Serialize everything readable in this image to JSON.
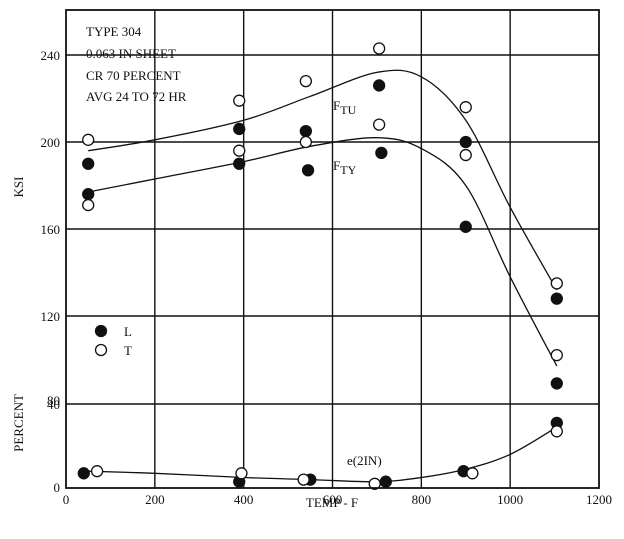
{
  "chart_data": {
    "type": "scatter",
    "grid": true,
    "x_axis": {
      "label": "TEMP - F",
      "ticks": [
        0,
        200,
        400,
        600,
        800,
        1000,
        1200
      ],
      "range": [
        0,
        1200
      ]
    },
    "y_axis_ksi": {
      "label": "KSI",
      "ticks": [
        120,
        160,
        200,
        240
      ],
      "range": [
        80,
        270
      ]
    },
    "y_axis_percent": {
      "label": "PERCENT",
      "ticks": [
        0,
        40
      ],
      "range": [
        0,
        80
      ]
    },
    "annotation_lines": [
      "TYPE 304",
      "0.063 IN SHEET",
      "CR 70 PERCENT",
      "AVG 24 TO 72 HR"
    ],
    "curve_labels": {
      "ftu": {
        "main": "F",
        "sub": "TU"
      },
      "fty": {
        "main": "F",
        "sub": "TY"
      },
      "elong": "e(2IN)"
    },
    "legend": [
      {
        "symbol": "filled-circle",
        "label": "L"
      },
      {
        "symbol": "open-circle",
        "label": "T"
      }
    ],
    "series": [
      {
        "label": "L",
        "quantity": "F_TU",
        "axis": "ksi",
        "marker": "filled",
        "x": [
          50,
          390,
          540,
          705,
          900,
          1105
        ],
        "y": [
          190,
          206,
          205,
          226,
          200,
          128
        ]
      },
      {
        "label": "T",
        "quantity": "F_TU",
        "axis": "ksi",
        "marker": "open",
        "x": [
          50,
          390,
          540,
          705,
          900,
          1105
        ],
        "y": [
          201,
          219,
          228,
          243,
          216,
          135
        ]
      },
      {
        "label": "L",
        "quantity": "F_TY",
        "axis": "ksi",
        "marker": "filled",
        "x": [
          50,
          390,
          545,
          710,
          900,
          1105
        ],
        "y": [
          176,
          190,
          187,
          195,
          161,
          89
        ]
      },
      {
        "label": "T",
        "quantity": "F_TY",
        "axis": "ksi",
        "marker": "open",
        "x": [
          50,
          390,
          540,
          705,
          900,
          1105
        ],
        "y": [
          171,
          196,
          200,
          208,
          194,
          102
        ]
      },
      {
        "label": "L",
        "quantity": "e(2IN)",
        "axis": "percent",
        "marker": "filled",
        "x": [
          40,
          390,
          550,
          720,
          895,
          1105
        ],
        "y": [
          7,
          3,
          4,
          3,
          8,
          31
        ]
      },
      {
        "label": "T",
        "quantity": "e(2IN)",
        "axis": "percent",
        "marker": "open",
        "x": [
          70,
          395,
          535,
          695,
          915,
          1105
        ],
        "y": [
          8,
          7,
          4,
          2,
          7,
          27
        ]
      }
    ],
    "fit_curves": [
      {
        "quantity": "F_TU",
        "axis": "ksi",
        "x": [
          50,
          200,
          400,
          550,
          700,
          800,
          900,
          1000,
          1105
        ],
        "y": [
          196,
          201,
          210,
          221,
          232,
          230,
          210,
          170,
          132
        ]
      },
      {
        "quantity": "F_TY",
        "axis": "ksi",
        "x": [
          50,
          200,
          400,
          550,
          700,
          800,
          900,
          1000,
          1105
        ],
        "y": [
          177,
          183,
          191,
          198,
          202,
          197,
          180,
          138,
          97
        ]
      },
      {
        "quantity": "e(2IN)",
        "axis": "percent",
        "x": [
          50,
          200,
          400,
          550,
          700,
          800,
          900,
          1000,
          1105
        ],
        "y": [
          8,
          7,
          5,
          4,
          3,
          5,
          9,
          16,
          29
        ]
      }
    ]
  }
}
